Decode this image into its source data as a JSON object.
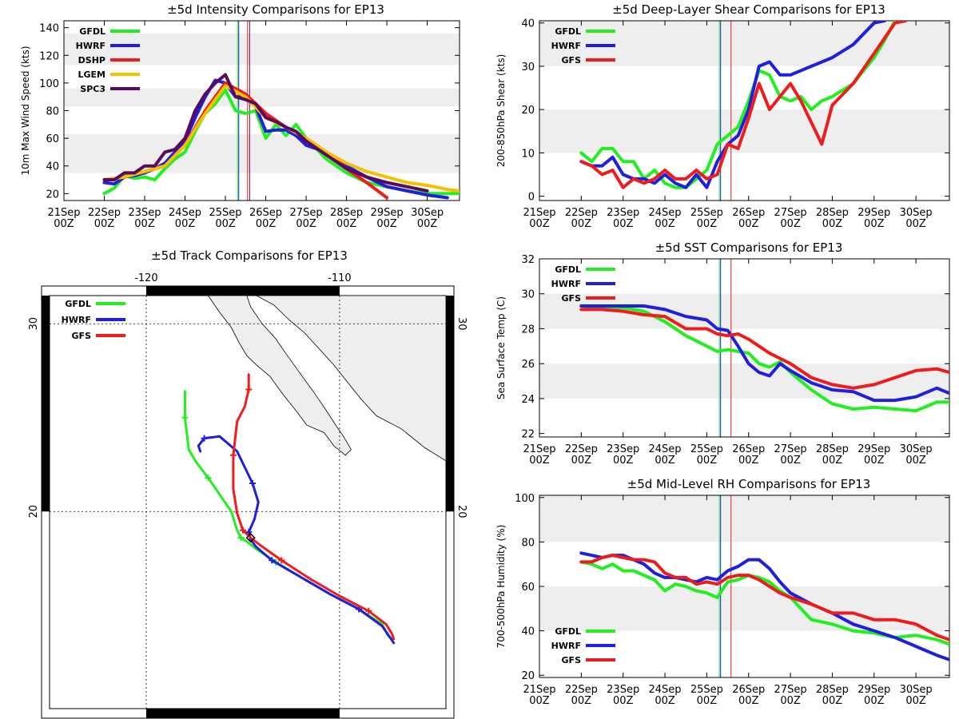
{
  "colors": {
    "GFDL": "#22ee22",
    "HWRF": "#1f1fdd",
    "GFS": "#ee1c1c",
    "DSHP": "#ee1c1c",
    "LGEM": "#f5c000",
    "SPC3": "#5a0a5a",
    "band": "#eeeeee"
  },
  "time_axis": {
    "days": [
      "21Sep",
      "22Sep",
      "23Sep",
      "24Sep",
      "25Sep",
      "26Sep",
      "27Sep",
      "28Sep",
      "29Sep",
      "30Sep"
    ],
    "hour": "00Z",
    "start_day": 21,
    "end_day": 30.8
  },
  "chart_data": [
    {
      "id": "intensity",
      "type": "line",
      "title": "±5d Intensity Comparisons for EP13",
      "ylabel": "10m Max Wind Speed (kts)",
      "ylim": [
        15,
        145
      ],
      "yticks": [
        20,
        40,
        60,
        80,
        100,
        120,
        140
      ],
      "bands": [
        [
          35,
          63
        ],
        [
          83,
          96
        ],
        [
          113,
          136
        ]
      ],
      "vlines": [
        {
          "x": 25.3,
          "model": "GFDL"
        },
        {
          "x": 25.33,
          "model": "HWRF"
        },
        {
          "x": 25.55,
          "model": "GFS"
        },
        {
          "x": 25.6,
          "model": "SPC3"
        }
      ],
      "series": [
        {
          "name": "GFDL",
          "x": [
            22,
            22.25,
            22.5,
            22.75,
            23,
            23.25,
            23.5,
            23.75,
            24,
            24.25,
            24.5,
            24.75,
            25,
            25.25,
            25.5,
            25.75,
            26,
            26.25,
            26.5,
            26.75,
            27,
            27.5,
            28,
            28.5,
            29,
            29.5,
            30,
            30.5,
            30.8
          ],
          "values": [
            20,
            24,
            33,
            31,
            32,
            30,
            38,
            45,
            50,
            65,
            78,
            85,
            95,
            80,
            78,
            80,
            60,
            70,
            62,
            70,
            60,
            45,
            35,
            28,
            25,
            22,
            20,
            20,
            20
          ]
        },
        {
          "name": "HWRF",
          "x": [
            22,
            22.25,
            22.5,
            22.75,
            23,
            23.25,
            23.5,
            23.75,
            24,
            24.25,
            24.5,
            24.75,
            25,
            25.25,
            25.5,
            25.75,
            26,
            26.25,
            26.5,
            26.75,
            27,
            27.5,
            28,
            28.5,
            29,
            29.5,
            30,
            30.5
          ],
          "values": [
            28,
            27,
            32,
            33,
            35,
            38,
            42,
            50,
            58,
            75,
            90,
            102,
            100,
            90,
            90,
            83,
            65,
            66,
            66,
            62,
            55,
            50,
            40,
            32,
            25,
            22,
            19,
            17
          ]
        },
        {
          "name": "DSHP",
          "x": [
            22,
            22.5,
            23,
            23.5,
            24,
            24.5,
            25,
            25.5,
            26,
            26.5,
            27,
            27.5,
            28,
            28.5,
            29
          ],
          "values": [
            30,
            32,
            36,
            40,
            55,
            80,
            100,
            92,
            78,
            68,
            60,
            50,
            38,
            28,
            17
          ]
        },
        {
          "name": "LGEM",
          "x": [
            22,
            22.5,
            23,
            23.5,
            24,
            24.5,
            25,
            25.5,
            26,
            26.5,
            27,
            27.5,
            28,
            28.5,
            29,
            29.5,
            30,
            30.5,
            30.8
          ],
          "values": [
            30,
            32,
            36,
            40,
            55,
            78,
            98,
            90,
            75,
            68,
            60,
            50,
            42,
            36,
            32,
            28,
            26,
            23,
            22
          ]
        },
        {
          "name": "SPC3",
          "x": [
            22,
            22.25,
            22.5,
            22.75,
            23,
            23.25,
            23.5,
            23.75,
            24,
            24.25,
            24.5,
            24.75,
            25,
            25.25,
            25.5,
            25.75,
            26,
            26.25,
            26.5,
            26.75,
            27,
            27.5,
            28,
            28.5,
            29,
            29.5,
            30
          ],
          "values": [
            30,
            30,
            35,
            35,
            40,
            40,
            50,
            52,
            60,
            80,
            92,
            100,
            106,
            90,
            88,
            85,
            75,
            72,
            68,
            65,
            58,
            48,
            38,
            32,
            28,
            25,
            22
          ]
        }
      ],
      "legend": [
        "GFDL",
        "HWRF",
        "DSHP",
        "LGEM",
        "SPC3"
      ]
    },
    {
      "id": "shear",
      "type": "line",
      "title": "±5d Deep-Layer Shear Comparisons for EP13",
      "ylabel": "200-850hPa Shear (kts)",
      "ylim": [
        -1,
        40.5
      ],
      "yticks": [
        0,
        10,
        20,
        30,
        40
      ],
      "bands": [
        [
          10,
          20
        ],
        [
          30,
          40.5
        ]
      ],
      "vlines": [
        {
          "x": 25.3,
          "model": "GFDL"
        },
        {
          "x": 25.33,
          "model": "HWRF"
        },
        {
          "x": 25.58,
          "model": "GFS"
        }
      ],
      "series": [
        {
          "name": "GFDL",
          "x": [
            22,
            22.25,
            22.5,
            22.75,
            23,
            23.25,
            23.5,
            23.75,
            24,
            24.25,
            24.5,
            24.75,
            25,
            25.25,
            25.5,
            25.75,
            26,
            26.25,
            26.5,
            26.75,
            27,
            27.25,
            27.5,
            27.75,
            28,
            28.5,
            29,
            29.25,
            29.5
          ],
          "values": [
            10,
            8,
            11,
            11,
            8,
            8,
            4,
            6,
            3,
            2,
            2,
            4,
            6,
            12,
            14,
            16,
            22,
            29,
            28,
            23,
            22,
            23,
            20,
            22,
            23,
            26,
            32,
            36,
            40.5
          ]
        },
        {
          "name": "HWRF",
          "x": [
            22,
            22.25,
            22.5,
            22.75,
            23,
            23.25,
            23.5,
            23.75,
            24,
            24.25,
            24.5,
            24.75,
            25,
            25.25,
            25.5,
            25.75,
            26,
            26.25,
            26.5,
            26.75,
            27,
            27.5,
            28,
            28.5,
            29,
            29.25
          ],
          "values": [
            8,
            7,
            7,
            9,
            5,
            4,
            4,
            3,
            5,
            3,
            2,
            5,
            2,
            8,
            12,
            14,
            20,
            30,
            31,
            28,
            28,
            30,
            32,
            35,
            40,
            40.5
          ]
        },
        {
          "name": "GFS",
          "x": [
            22,
            22.25,
            22.5,
            22.75,
            23,
            23.25,
            23.5,
            23.75,
            24,
            24.25,
            24.5,
            24.75,
            25,
            25.25,
            25.5,
            25.75,
            26,
            26.25,
            26.5,
            26.75,
            27,
            27.25,
            27.5,
            27.75,
            28,
            28.5,
            29,
            29.5,
            29.75
          ],
          "values": [
            8,
            7,
            5,
            6,
            2,
            4,
            3,
            4,
            6,
            4,
            4,
            6,
            4,
            5,
            12,
            11,
            18,
            26,
            20,
            23,
            26,
            22,
            17,
            12,
            21,
            26,
            33,
            40,
            40.5
          ]
        }
      ],
      "legend": [
        "GFDL",
        "HWRF",
        "GFS"
      ]
    },
    {
      "id": "sst",
      "type": "line",
      "title": "±5d SST Comparisons for EP13",
      "ylabel": "Sea Surface Temp (C)",
      "ylim": [
        21.8,
        32
      ],
      "yticks": [
        22,
        24,
        26,
        28,
        30,
        32
      ],
      "bands": [
        [
          24,
          26
        ],
        [
          28,
          30
        ]
      ],
      "vlines": [
        {
          "x": 25.3,
          "model": "GFDL"
        },
        {
          "x": 25.33,
          "model": "HWRF"
        },
        {
          "x": 25.58,
          "model": "GFS"
        }
      ],
      "series": [
        {
          "name": "GFDL",
          "x": [
            22,
            22.5,
            23,
            23.5,
            24,
            24.5,
            25,
            25.25,
            25.5,
            25.75,
            26,
            26.25,
            26.5,
            26.75,
            27,
            27.5,
            28,
            28.5,
            29,
            29.5,
            30,
            30.5,
            30.8
          ],
          "values": [
            29.3,
            29.2,
            29.2,
            29.0,
            28.4,
            27.6,
            27.0,
            26.7,
            26.8,
            26.7,
            26.6,
            26.0,
            25.8,
            26.1,
            25.5,
            24.5,
            23.7,
            23.4,
            23.5,
            23.4,
            23.3,
            23.8,
            23.8
          ]
        },
        {
          "name": "HWRF",
          "x": [
            22,
            22.5,
            23,
            23.5,
            24,
            24.5,
            25,
            25.25,
            25.5,
            25.75,
            26,
            26.25,
            26.5,
            26.75,
            27,
            27.5,
            28,
            28.5,
            29,
            29.5,
            30,
            30.5,
            30.8
          ],
          "values": [
            29.3,
            29.3,
            29.3,
            29.3,
            29.1,
            28.7,
            28.5,
            28.0,
            27.9,
            27.0,
            26.0,
            25.5,
            25.3,
            26.0,
            25.6,
            24.9,
            24.5,
            24.4,
            23.9,
            23.9,
            24.1,
            24.6,
            24.3
          ]
        },
        {
          "name": "GFS",
          "x": [
            22,
            22.5,
            23,
            23.5,
            24,
            24.5,
            25,
            25.25,
            25.5,
            25.75,
            26,
            26.5,
            27,
            27.5,
            28,
            28.5,
            29,
            29.5,
            30,
            30.5,
            30.8
          ],
          "values": [
            29.1,
            29.1,
            29.0,
            28.8,
            28.7,
            28.0,
            28.0,
            27.7,
            27.6,
            27.7,
            27.4,
            26.6,
            26.0,
            25.2,
            24.8,
            24.6,
            24.8,
            25.2,
            25.6,
            25.7,
            25.5
          ]
        }
      ],
      "legend": [
        "GFDL",
        "HWRF",
        "GFS"
      ]
    },
    {
      "id": "rh",
      "type": "line",
      "title": "±5d Mid-Level RH Comparisons for EP13",
      "ylabel": "700-500hPa Humidity (%)",
      "ylim": [
        19,
        101
      ],
      "yticks": [
        20,
        40,
        60,
        80,
        100
      ],
      "bands": [
        [
          40,
          60
        ],
        [
          80,
          101
        ]
      ],
      "vlines": [
        {
          "x": 25.3,
          "model": "GFDL"
        },
        {
          "x": 25.33,
          "model": "HWRF"
        },
        {
          "x": 25.58,
          "model": "GFS"
        }
      ],
      "series": [
        {
          "name": "GFDL",
          "x": [
            22,
            22.25,
            22.5,
            22.75,
            23,
            23.25,
            23.5,
            23.75,
            24,
            24.25,
            24.5,
            24.75,
            25,
            25.25,
            25.5,
            25.75,
            26,
            26.25,
            26.5,
            26.75,
            27,
            27.5,
            28,
            28.5,
            29,
            29.5,
            30,
            30.5,
            30.8
          ],
          "values": [
            71,
            70,
            68,
            70,
            67,
            67,
            65,
            63,
            58,
            61,
            60,
            58,
            57,
            55,
            62,
            63,
            65,
            64,
            62,
            58,
            55,
            45,
            43,
            40,
            39,
            37,
            38,
            36,
            34
          ]
        },
        {
          "name": "HWRF",
          "x": [
            22,
            22.25,
            22.5,
            22.75,
            23,
            23.25,
            23.5,
            23.75,
            24,
            24.25,
            24.5,
            24.75,
            25,
            25.25,
            25.5,
            25.75,
            26,
            26.25,
            26.5,
            26.75,
            27,
            27.5,
            28,
            28.5,
            29,
            29.5,
            30,
            30.5,
            30.8
          ],
          "values": [
            75,
            74,
            73,
            74,
            74,
            72,
            70,
            66,
            64,
            64,
            63,
            62,
            64,
            63,
            67,
            69,
            72,
            72,
            68,
            62,
            57,
            52,
            48,
            43,
            40,
            37,
            33,
            29,
            27
          ]
        },
        {
          "name": "GFS",
          "x": [
            22,
            22.25,
            22.5,
            22.75,
            23,
            23.25,
            23.5,
            23.75,
            24,
            24.25,
            24.5,
            24.75,
            25,
            25.25,
            25.5,
            25.75,
            26,
            26.25,
            26.5,
            26.75,
            27,
            27.5,
            28,
            28.5,
            29,
            29.5,
            30,
            30.5,
            30.8
          ],
          "values": [
            71,
            71,
            73,
            74,
            73,
            72,
            72,
            71,
            66,
            64,
            64,
            61,
            62,
            61,
            64,
            65,
            65,
            63,
            60,
            57,
            55,
            52,
            48,
            48,
            45,
            45,
            43,
            38,
            36
          ]
        }
      ],
      "legend": [
        "GFDL",
        "HWRF",
        "GFS"
      ]
    },
    {
      "id": "track",
      "type": "line",
      "title": "±5d Track Comparisons for EP13",
      "lon_ticks": [
        -120,
        -110
      ],
      "lat_ticks": [
        20,
        30
      ],
      "lon_range": [
        -125,
        -104.5
      ],
      "lat_range": [
        9.5,
        31.5
      ],
      "series": [
        {
          "name": "GFDL",
          "lon": [
            -107.3,
            -107.5,
            -107.8,
            -109,
            -110.5,
            -112,
            -113.3,
            -114.3,
            -114.8,
            -115.1,
            -115.3,
            -115.6,
            -116.8,
            -117.4,
            -117.8,
            -118.0,
            -118.0
          ],
          "lat": [
            13.2,
            13.4,
            14.0,
            14.8,
            15.6,
            16.5,
            17.3,
            18.0,
            18.4,
            18.6,
            19.0,
            20.0,
            21.8,
            22.6,
            23.3,
            25.0,
            26.4
          ]
        },
        {
          "name": "HWRF",
          "lon": [
            -107.2,
            -107.4,
            -107.8,
            -109,
            -110.5,
            -112,
            -113.5,
            -114.3,
            -114.6,
            -114.7,
            -114.4,
            -114.2,
            -114.5,
            -115.3,
            -116.2,
            -117.0,
            -117.3,
            -117.2
          ],
          "lat": [
            13.0,
            13.3,
            13.9,
            14.8,
            15.6,
            16.5,
            17.4,
            18.1,
            18.5,
            18.9,
            19.6,
            20.5,
            21.5,
            23.2,
            24.0,
            23.9,
            23.5,
            23.2
          ]
        },
        {
          "name": "GFS",
          "lon": [
            -107.2,
            -107.3,
            -107.6,
            -108.5,
            -110,
            -111.5,
            -113,
            -114.1,
            -114.6,
            -115.0,
            -115.3,
            -115.5,
            -115.5,
            -115.3,
            -114.9,
            -114.7,
            -114.7
          ],
          "lat": [
            13.2,
            13.5,
            14.0,
            14.7,
            15.5,
            16.4,
            17.4,
            18.2,
            18.6,
            19.0,
            19.9,
            21.2,
            23.0,
            24.8,
            25.6,
            26.5,
            27.3
          ]
        }
      ],
      "legend": [
        "GFDL",
        "HWRF",
        "GFS"
      ]
    }
  ]
}
